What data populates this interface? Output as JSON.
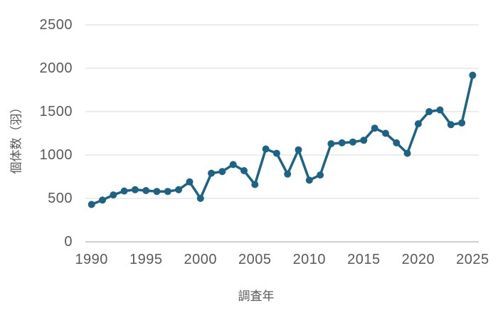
{
  "figure": {
    "background": "#ffffff",
    "text_color": "#595959",
    "grid_color": "#d9d9d9",
    "zero_line_color": "#c0c0c0",
    "line_color": "#1c6384"
  },
  "chart_data": {
    "type": "line",
    "title": "",
    "xlabel": "調査年",
    "ylabel": "個体数（羽）",
    "legend": "none",
    "grid": "horizontal",
    "marker": "circle",
    "ylim": [
      0,
      2500
    ],
    "y_ticks": [
      0,
      500,
      1000,
      1500,
      2000,
      2500
    ],
    "x_ticks": [
      1990,
      1995,
      2000,
      2005,
      2010,
      2015,
      2020,
      2025
    ],
    "x": [
      1990,
      1991,
      1992,
      1993,
      1994,
      1995,
      1996,
      1997,
      1998,
      1999,
      2000,
      2001,
      2002,
      2003,
      2004,
      2005,
      2006,
      2007,
      2008,
      2009,
      2010,
      2011,
      2012,
      2013,
      2014,
      2015,
      2016,
      2017,
      2018,
      2019,
      2020,
      2021,
      2022,
      2023,
      2024,
      2025
    ],
    "values": [
      430,
      480,
      540,
      585,
      600,
      590,
      580,
      580,
      600,
      690,
      500,
      790,
      810,
      890,
      820,
      660,
      1070,
      1020,
      780,
      1060,
      710,
      770,
      1130,
      1140,
      1150,
      1170,
      1310,
      1250,
      1140,
      1020,
      1360,
      1500,
      1520,
      1350,
      1370,
      1920
    ]
  }
}
